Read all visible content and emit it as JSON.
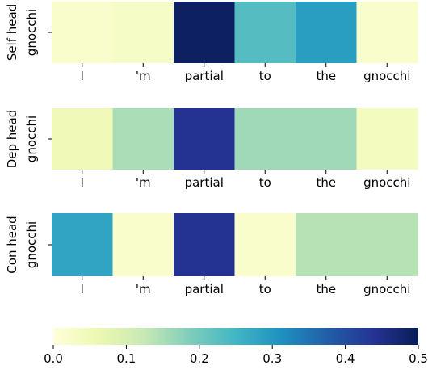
{
  "chart_data": [
    {
      "type": "heatmap",
      "ylabel": "Self head",
      "row_label": "gnocchi",
      "categories": [
        "I",
        "'m",
        "partial",
        "to",
        "the",
        "gnocchi"
      ],
      "values": [
        0.02,
        0.03,
        0.49,
        0.23,
        0.29,
        0.02
      ]
    },
    {
      "type": "heatmap",
      "ylabel": "Dep head",
      "row_label": "gnocchi",
      "categories": [
        "I",
        "'m",
        "partial",
        "to",
        "the",
        "gnocchi"
      ],
      "values": [
        0.05,
        0.15,
        0.44,
        0.16,
        0.16,
        0.04
      ]
    },
    {
      "type": "heatmap",
      "ylabel": "Con head",
      "row_label": "gnocchi",
      "categories": [
        "I",
        "'m",
        "partial",
        "to",
        "the",
        "gnocchi"
      ],
      "values": [
        0.28,
        0.02,
        0.44,
        0.02,
        0.14,
        0.14
      ]
    }
  ],
  "colorbar": {
    "colormap": "YlGnBu",
    "range": [
      0.0,
      0.5
    ],
    "ticks": [
      "0.0",
      "0.1",
      "0.2",
      "0.3",
      "0.4",
      "0.5"
    ]
  }
}
